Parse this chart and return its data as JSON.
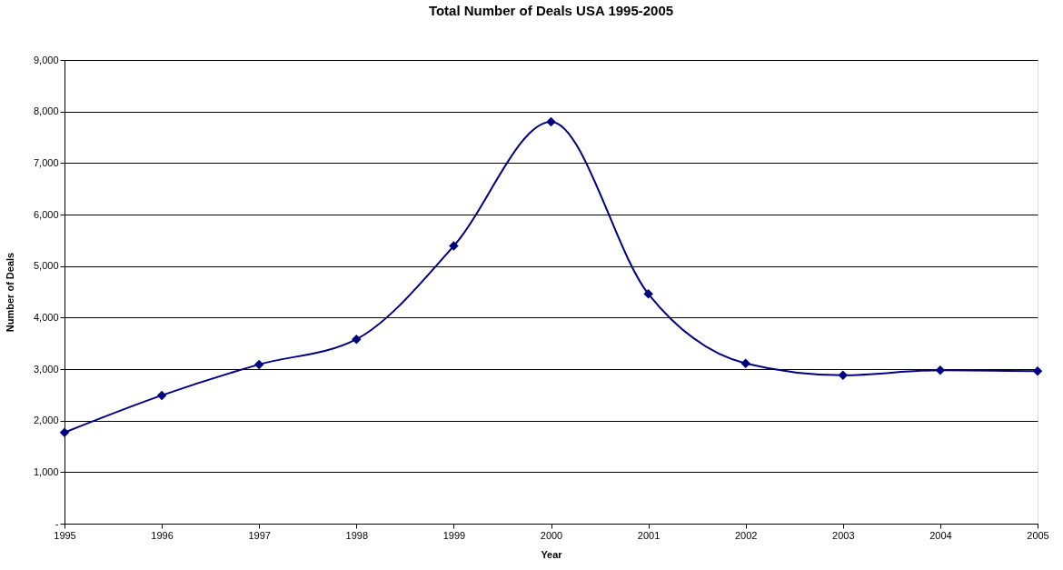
{
  "chart_data": {
    "type": "line",
    "title": "Total Number of Deals USA 1995-2005",
    "xlabel": "Year",
    "ylabel": "Number of Deals",
    "x": [
      1995,
      1996,
      1997,
      1998,
      1999,
      2000,
      2001,
      2002,
      2003,
      2004,
      2005
    ],
    "series": [
      {
        "color": "#000080",
        "values": [
          1770,
          2490,
          3090,
          3580,
          5390,
          7800,
          4460,
          3110,
          2880,
          2980,
          2960
        ]
      }
    ],
    "xlim": [
      1995,
      2005
    ],
    "xticks": [
      1995,
      1996,
      1997,
      1998,
      1999,
      2000,
      2001,
      2002,
      2003,
      2004,
      2005
    ],
    "ylim": [
      0,
      9000
    ],
    "yticks": [
      {
        "value": 0,
        "label": "-"
      },
      {
        "value": 1000,
        "label": "1,000"
      },
      {
        "value": 2000,
        "label": "2,000"
      },
      {
        "value": 3000,
        "label": "3,000"
      },
      {
        "value": 4000,
        "label": "4,000"
      },
      {
        "value": 5000,
        "label": "5,000"
      },
      {
        "value": 6000,
        "label": "6,000"
      },
      {
        "value": 7000,
        "label": "7,000"
      },
      {
        "value": 8000,
        "label": "8,000"
      },
      {
        "value": 9000,
        "label": "9,000"
      }
    ],
    "grid": "y",
    "marker": "diamond",
    "line_style": "solid"
  }
}
